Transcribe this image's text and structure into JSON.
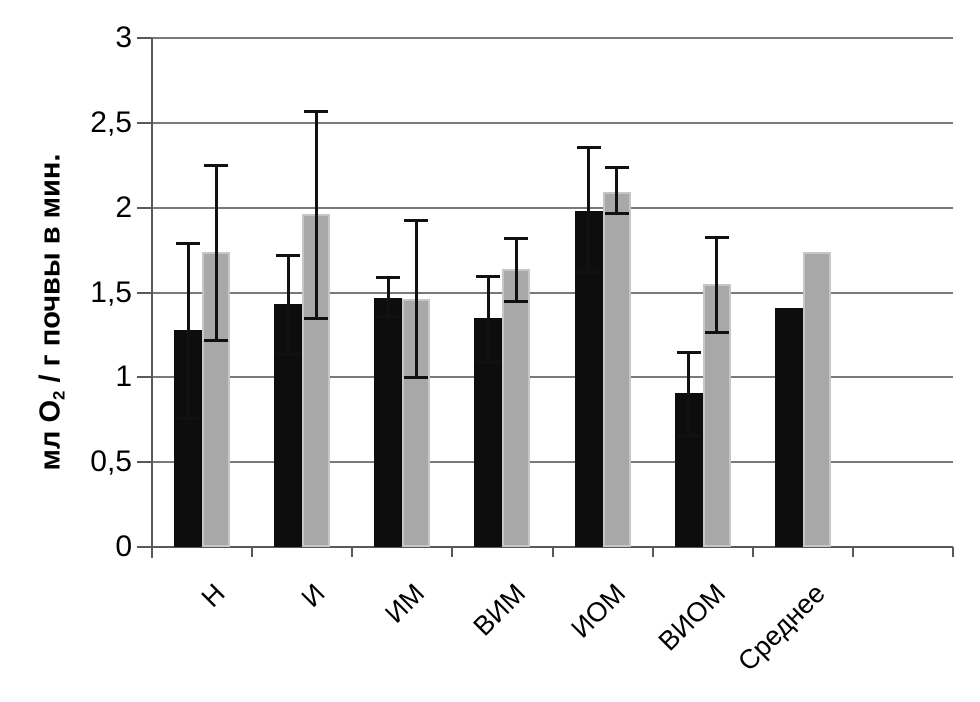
{
  "chart_data": {
    "type": "bar",
    "title": "",
    "xlabel": "",
    "ylabel": "мл О2 / г почвы в мин.",
    "ylabel_parts": {
      "prefix": "мл О",
      "sub": "2",
      "suffix": " / г почвы в мин."
    },
    "categories": [
      "Н",
      "И",
      "ИМ",
      "ВИМ",
      "ИОМ",
      "ВИОМ",
      "Среднее"
    ],
    "series": [
      {
        "name": "black-bars",
        "color": "#0d0d0d",
        "values": [
          1.28,
          1.43,
          1.47,
          1.35,
          1.98,
          0.91,
          1.41
        ],
        "error_low": [
          0.76,
          1.14,
          1.36,
          1.09,
          1.62,
          0.66,
          null
        ],
        "error_high": [
          1.79,
          1.72,
          1.59,
          1.6,
          2.36,
          1.15,
          null
        ]
      },
      {
        "name": "gray-bars",
        "color": "#a8a8a8",
        "border_color": "#c6c6c6",
        "values": [
          1.74,
          1.96,
          1.46,
          1.64,
          2.09,
          1.55,
          1.74
        ],
        "error_low": [
          1.22,
          1.35,
          1.0,
          1.45,
          1.97,
          1.27,
          null
        ],
        "error_high": [
          2.25,
          2.57,
          1.93,
          1.82,
          2.24,
          1.83,
          null
        ]
      }
    ],
    "ylim": [
      0,
      3
    ],
    "ytick_step": 0.5,
    "ytick_labels": [
      "0",
      "0,5",
      "1",
      "1,5",
      "2",
      "2,5",
      "3"
    ],
    "grid": true,
    "legend": "none",
    "error_bars": "symmetric with caps",
    "extra_empty_slots": 1,
    "colors": {
      "gridline": "#7a7a7a",
      "axis": "#595959",
      "error_bar": "#111111",
      "text": "#000000",
      "background": "#ffffff"
    }
  }
}
